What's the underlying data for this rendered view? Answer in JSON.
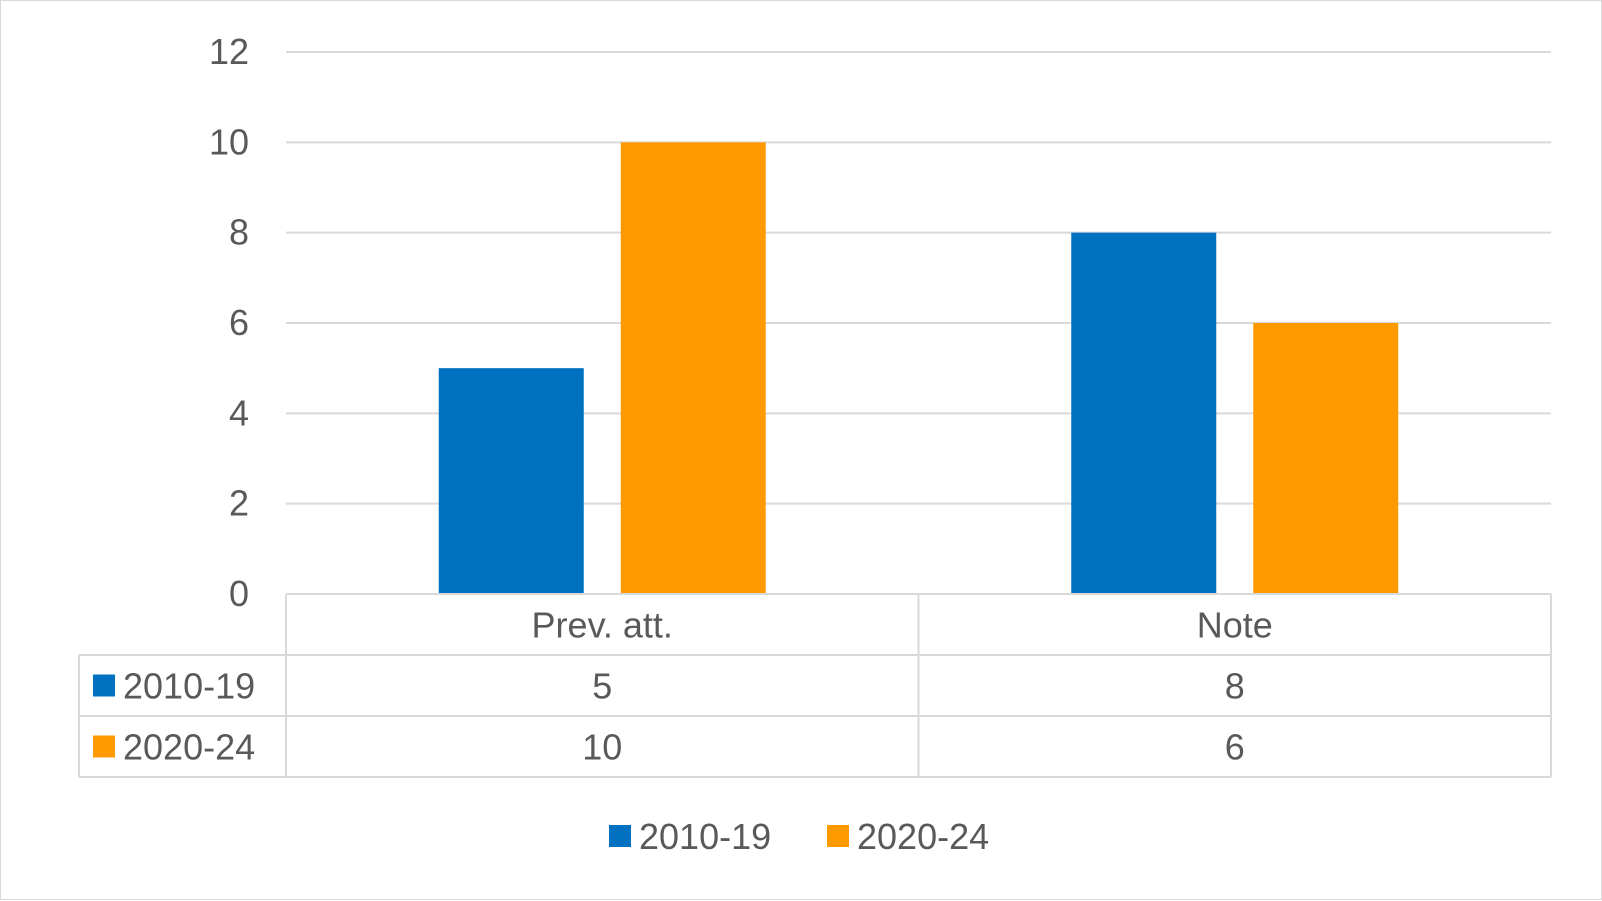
{
  "chart_data": {
    "type": "bar",
    "categories": [
      "Prev. att.",
      "Note"
    ],
    "series": [
      {
        "name": "2010-19",
        "color": "#0070C0",
        "values": [
          5,
          8
        ]
      },
      {
        "name": "2020-24",
        "color": "#FF9900",
        "values": [
          10,
          6
        ]
      }
    ],
    "ylim": [
      0,
      12
    ],
    "yticks": [
      0,
      2,
      4,
      6,
      8,
      10,
      12
    ],
    "grid": true,
    "data_table": true,
    "legend_position": "bottom"
  }
}
